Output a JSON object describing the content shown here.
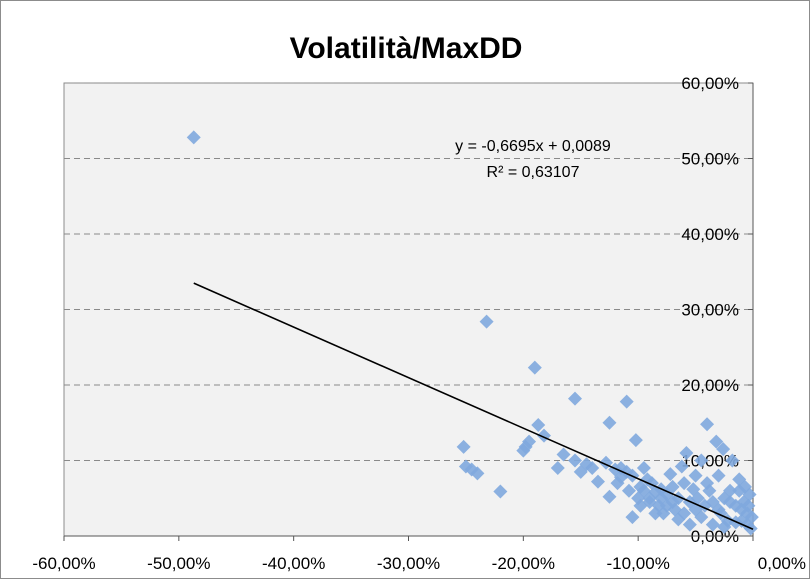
{
  "chart_data": {
    "type": "scatter",
    "title": "Volatilità/MaxDD",
    "xlabel": "",
    "ylabel": "",
    "xlim": [
      -0.6,
      0.0
    ],
    "ylim": [
      0.0,
      0.6
    ],
    "x_ticks": [
      -0.6,
      -0.5,
      -0.4,
      -0.3,
      -0.2,
      -0.1,
      0.0
    ],
    "y_ticks": [
      0.0,
      0.1,
      0.2,
      0.3,
      0.4,
      0.5,
      0.6
    ],
    "x_tick_labels": [
      "-60,00%",
      "-50,00%",
      "-40,00%",
      "-30,00%",
      "-20,00%",
      "-10,00%",
      "0,00%"
    ],
    "y_tick_labels": [
      "0,00%",
      "10,00%",
      "20,00%",
      "30,00%",
      "40,00%",
      "50,00%",
      "60,00%"
    ],
    "grid": "horizontal dashed",
    "y_axis_side": "right",
    "plot_background": "#f2f2f2",
    "marker_color": "#7fa8de",
    "trendline_color": "#000000",
    "series": [
      {
        "points": [
          [
            -0.487,
            0.528
          ],
          [
            -0.232,
            0.284
          ],
          [
            -0.19,
            0.223
          ],
          [
            -0.155,
            0.182
          ],
          [
            -0.11,
            0.178
          ],
          [
            -0.125,
            0.15
          ],
          [
            -0.187,
            0.147
          ],
          [
            -0.182,
            0.133
          ],
          [
            -0.195,
            0.125
          ],
          [
            -0.198,
            0.118
          ],
          [
            -0.2,
            0.113
          ],
          [
            -0.252,
            0.118
          ],
          [
            -0.25,
            0.092
          ],
          [
            -0.245,
            0.088
          ],
          [
            -0.24,
            0.083
          ],
          [
            -0.22,
            0.059
          ],
          [
            -0.17,
            0.09
          ],
          [
            -0.165,
            0.108
          ],
          [
            -0.155,
            0.1
          ],
          [
            -0.145,
            0.095
          ],
          [
            -0.14,
            0.09
          ],
          [
            -0.128,
            0.097
          ],
          [
            -0.125,
            0.052
          ],
          [
            -0.12,
            0.088
          ],
          [
            -0.115,
            0.078
          ],
          [
            -0.11,
            0.085
          ],
          [
            -0.105,
            0.08
          ],
          [
            -0.102,
            0.127
          ],
          [
            -0.098,
            0.065
          ],
          [
            -0.095,
            0.06
          ],
          [
            -0.092,
            0.075
          ],
          [
            -0.09,
            0.045
          ],
          [
            -0.088,
            0.07
          ],
          [
            -0.085,
            0.058
          ],
          [
            -0.082,
            0.04
          ],
          [
            -0.08,
            0.062
          ],
          [
            -0.078,
            0.03
          ],
          [
            -0.075,
            0.055
          ],
          [
            -0.072,
            0.082
          ],
          [
            -0.07,
            0.065
          ],
          [
            -0.068,
            0.035
          ],
          [
            -0.065,
            0.05
          ],
          [
            -0.062,
            0.092
          ],
          [
            -0.06,
            0.03
          ],
          [
            -0.058,
            0.11
          ],
          [
            -0.055,
            0.045
          ],
          [
            -0.052,
            0.062
          ],
          [
            -0.05,
            0.08
          ],
          [
            -0.048,
            0.05
          ],
          [
            -0.045,
            0.1
          ],
          [
            -0.042,
            0.04
          ],
          [
            -0.04,
            0.148
          ],
          [
            -0.038,
            0.06
          ],
          [
            -0.035,
            0.045
          ],
          [
            -0.032,
            0.125
          ],
          [
            -0.03,
            0.08
          ],
          [
            -0.028,
            0.03
          ],
          [
            -0.026,
            0.115
          ],
          [
            -0.025,
            0.05
          ],
          [
            -0.022,
            0.02
          ],
          [
            -0.02,
            0.06
          ],
          [
            -0.018,
            0.1
          ],
          [
            -0.015,
            0.04
          ],
          [
            -0.012,
            0.06
          ],
          [
            -0.01,
            0.02
          ],
          [
            -0.008,
            0.045
          ],
          [
            -0.005,
            0.03
          ],
          [
            -0.003,
            0.055
          ],
          [
            -0.002,
            0.01
          ],
          [
            -0.001,
            0.025
          ],
          [
            -0.085,
            0.03
          ],
          [
            -0.095,
            0.09
          ],
          [
            -0.105,
            0.025
          ],
          [
            -0.115,
            0.09
          ],
          [
            -0.135,
            0.072
          ],
          [
            -0.15,
            0.085
          ],
          [
            -0.065,
            0.022
          ],
          [
            -0.055,
            0.015
          ],
          [
            -0.045,
            0.025
          ],
          [
            -0.035,
            0.015
          ],
          [
            -0.025,
            0.012
          ],
          [
            -0.015,
            0.018
          ],
          [
            -0.01,
            0.035
          ],
          [
            -0.005,
            0.015
          ],
          [
            -0.07,
            0.045
          ],
          [
            -0.06,
            0.07
          ],
          [
            -0.05,
            0.035
          ],
          [
            -0.04,
            0.07
          ],
          [
            -0.03,
            0.035
          ],
          [
            -0.02,
            0.045
          ],
          [
            -0.012,
            0.075
          ],
          [
            -0.007,
            0.065
          ],
          [
            -0.004,
            0.04
          ],
          [
            -0.09,
            0.05
          ],
          [
            -0.08,
            0.05
          ],
          [
            -0.075,
            0.04
          ],
          [
            -0.1,
            0.05
          ],
          [
            -0.118,
            0.07
          ],
          [
            -0.108,
            0.06
          ],
          [
            -0.098,
            0.04
          ]
        ]
      }
    ],
    "trendline": {
      "equation": "y = -0,6695x + 0,0089",
      "r_squared": "R² = 0,63107",
      "slope": -0.6695,
      "intercept": 0.0089,
      "x_range": [
        -0.487,
        0.0
      ]
    }
  }
}
